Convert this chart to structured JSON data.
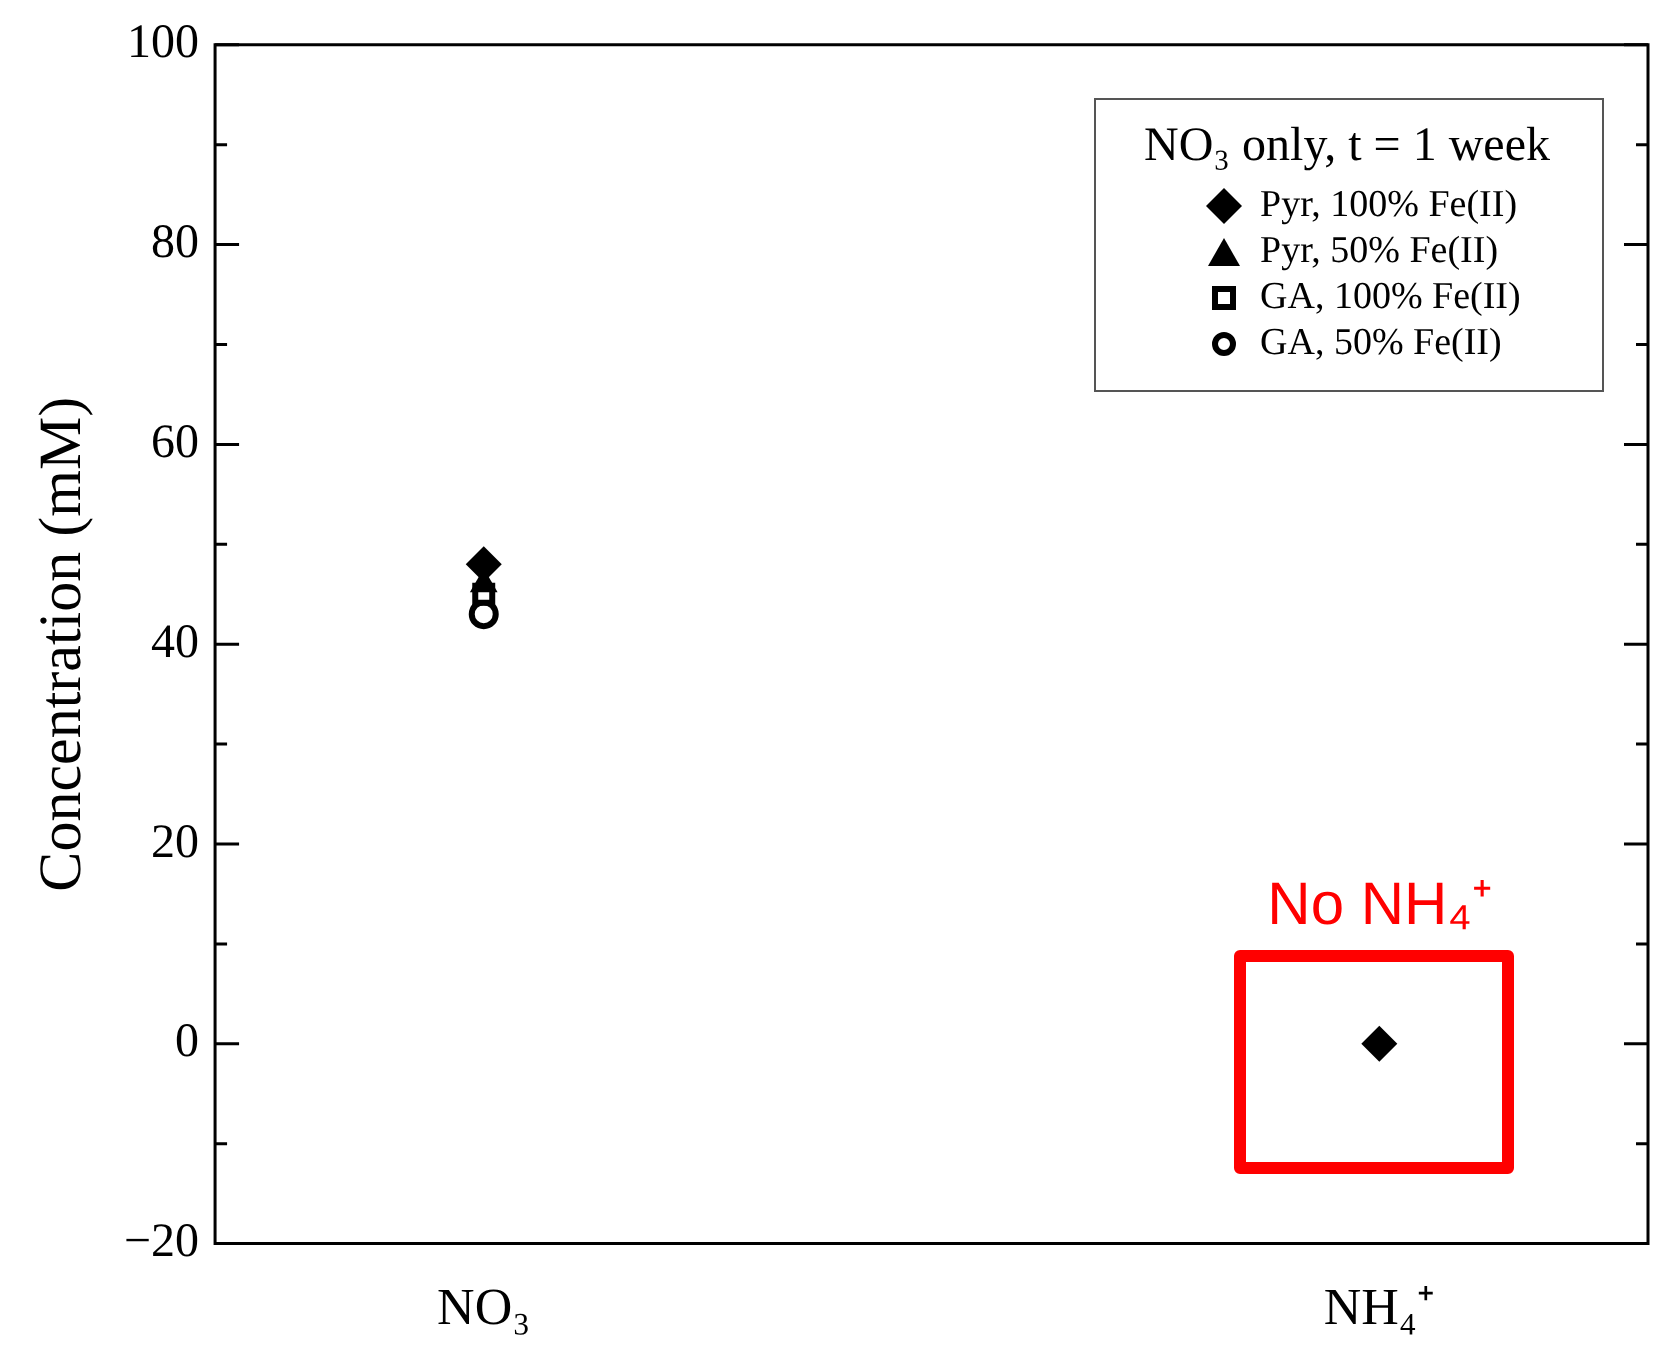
{
  "chart_data": {
    "type": "scatter",
    "ylabel": "Concentration (mM)",
    "legend_title": "NO₃ only, t = 1 week",
    "legend": "top right",
    "categories": [
      "NO₃",
      "NH₄⁺"
    ],
    "ylim": [
      -20,
      100
    ],
    "yticks": [
      -20,
      0,
      20,
      40,
      60,
      80,
      100
    ],
    "series": [
      {
        "name": "Pyr, 100% Fe(II)",
        "color": "#000000",
        "marker": "diamond",
        "values": [
          48,
          0
        ]
      },
      {
        "name": "Pyr, 50% Fe(II)",
        "color": "#000000",
        "marker": "triangle",
        "values": [
          46,
          null
        ]
      },
      {
        "name": "GA, 100% Fe(II)",
        "color": "#000000",
        "marker": "square",
        "values": [
          45,
          null
        ]
      },
      {
        "name": "GA, 50% Fe(II)",
        "color": "#000000",
        "marker": "circle",
        "values": [
          43,
          null
        ]
      }
    ],
    "annotations": [
      {
        "text": "No NH₄⁺",
        "x": "NH₄⁺",
        "y": 0
      }
    ]
  }
}
